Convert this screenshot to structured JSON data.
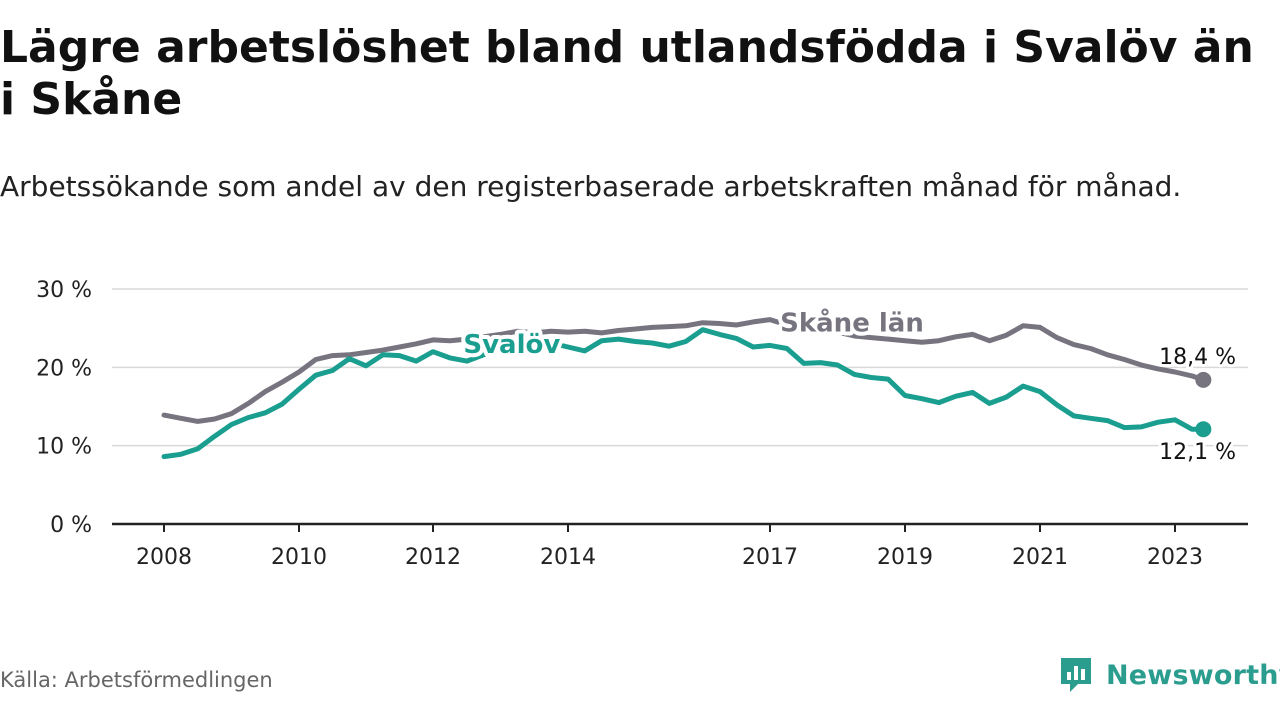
{
  "header": {
    "title": "Lägre arbetslöshet bland utlandsfödda i Svalöv än i Skåne",
    "subtitle": "Arbetssökande som andel av den registerbaserade arbetskraften månad för månad."
  },
  "footer": {
    "source": "Källa: Arbetsförmedlingen",
    "brand": "Newsworthy"
  },
  "colors": {
    "svalov": "#1a9e8f",
    "skane": "#77747f",
    "grid": "#d9d9d9",
    "axis": "#222222",
    "brand": "#2b9d8f"
  },
  "chart_data": {
    "type": "line",
    "title": "Lägre arbetslöshet bland utlandsfödda i Svalöv än i Skåne",
    "xlabel": "",
    "ylabel": "",
    "ylim": [
      0,
      30
    ],
    "xlim": [
      2008.0,
      2024.0
    ],
    "yticks": [
      0,
      10,
      20,
      30
    ],
    "ytick_labels": [
      "0 %",
      "10 %",
      "20 %",
      "30 %"
    ],
    "xticks": [
      2008,
      2010,
      2012,
      2014,
      2017,
      2019,
      2021,
      2023
    ],
    "xtick_labels": [
      "2008",
      "2010",
      "2012",
      "2014",
      "2017",
      "2019",
      "2021",
      "2023"
    ],
    "grid": true,
    "series": [
      {
        "name": "Skåne län",
        "key": "skane",
        "end_label": "18,4 %",
        "points": [
          [
            2008.0,
            13.9
          ],
          [
            2008.25,
            13.5
          ],
          [
            2008.5,
            13.1
          ],
          [
            2008.75,
            13.4
          ],
          [
            2009.0,
            14.1
          ],
          [
            2009.25,
            15.4
          ],
          [
            2009.5,
            16.9
          ],
          [
            2009.75,
            18.1
          ],
          [
            2010.0,
            19.4
          ],
          [
            2010.25,
            21.0
          ],
          [
            2010.5,
            21.5
          ],
          [
            2010.75,
            21.6
          ],
          [
            2011.0,
            21.9
          ],
          [
            2011.25,
            22.2
          ],
          [
            2011.5,
            22.6
          ],
          [
            2011.75,
            23.0
          ],
          [
            2012.0,
            23.5
          ],
          [
            2012.25,
            23.4
          ],
          [
            2012.5,
            23.6
          ],
          [
            2012.75,
            23.9
          ],
          [
            2013.0,
            24.2
          ],
          [
            2013.25,
            24.6
          ],
          [
            2013.5,
            24.4
          ],
          [
            2013.75,
            24.6
          ],
          [
            2014.0,
            24.5
          ],
          [
            2014.25,
            24.6
          ],
          [
            2014.5,
            24.4
          ],
          [
            2014.75,
            24.7
          ],
          [
            2015.0,
            24.9
          ],
          [
            2015.25,
            25.1
          ],
          [
            2015.5,
            25.2
          ],
          [
            2015.75,
            25.3
          ],
          [
            2016.0,
            25.7
          ],
          [
            2016.25,
            25.6
          ],
          [
            2016.5,
            25.4
          ],
          [
            2016.75,
            25.8
          ],
          [
            2017.0,
            26.1
          ],
          [
            2017.25,
            25.4
          ],
          [
            2017.5,
            25.1
          ],
          [
            2017.75,
            24.8
          ],
          [
            2018.0,
            24.5
          ],
          [
            2018.25,
            24.0
          ],
          [
            2018.5,
            23.8
          ],
          [
            2018.75,
            23.6
          ],
          [
            2019.0,
            23.4
          ],
          [
            2019.25,
            23.2
          ],
          [
            2019.5,
            23.4
          ],
          [
            2019.75,
            23.9
          ],
          [
            2020.0,
            24.2
          ],
          [
            2020.25,
            23.4
          ],
          [
            2020.5,
            24.1
          ],
          [
            2020.75,
            25.3
          ],
          [
            2021.0,
            25.1
          ],
          [
            2021.25,
            23.8
          ],
          [
            2021.5,
            22.9
          ],
          [
            2021.75,
            22.4
          ],
          [
            2022.0,
            21.6
          ],
          [
            2022.25,
            21.0
          ],
          [
            2022.5,
            20.3
          ],
          [
            2022.75,
            19.8
          ],
          [
            2023.0,
            19.4
          ],
          [
            2023.25,
            18.9
          ],
          [
            2023.42,
            18.4
          ]
        ]
      },
      {
        "name": "Svalöv",
        "key": "svalov",
        "end_label": "12,1 %",
        "points": [
          [
            2008.0,
            8.6
          ],
          [
            2008.25,
            8.9
          ],
          [
            2008.5,
            9.6
          ],
          [
            2008.75,
            11.2
          ],
          [
            2009.0,
            12.7
          ],
          [
            2009.25,
            13.6
          ],
          [
            2009.5,
            14.2
          ],
          [
            2009.75,
            15.3
          ],
          [
            2010.0,
            17.2
          ],
          [
            2010.25,
            19.0
          ],
          [
            2010.5,
            19.6
          ],
          [
            2010.75,
            21.1
          ],
          [
            2011.0,
            20.2
          ],
          [
            2011.25,
            21.6
          ],
          [
            2011.5,
            21.5
          ],
          [
            2011.75,
            20.8
          ],
          [
            2012.0,
            22.0
          ],
          [
            2012.25,
            21.2
          ],
          [
            2012.5,
            20.8
          ],
          [
            2012.75,
            21.6
          ],
          [
            2013.0,
            22.4
          ],
          [
            2013.25,
            22.0
          ],
          [
            2013.5,
            22.7
          ],
          [
            2013.75,
            23.1
          ],
          [
            2014.0,
            22.6
          ],
          [
            2014.25,
            22.1
          ],
          [
            2014.5,
            23.4
          ],
          [
            2014.75,
            23.6
          ],
          [
            2015.0,
            23.3
          ],
          [
            2015.25,
            23.1
          ],
          [
            2015.5,
            22.7
          ],
          [
            2015.75,
            23.3
          ],
          [
            2016.0,
            24.8
          ],
          [
            2016.25,
            24.2
          ],
          [
            2016.5,
            23.7
          ],
          [
            2016.75,
            22.6
          ],
          [
            2017.0,
            22.8
          ],
          [
            2017.25,
            22.4
          ],
          [
            2017.5,
            20.5
          ],
          [
            2017.75,
            20.6
          ],
          [
            2018.0,
            20.3
          ],
          [
            2018.25,
            19.1
          ],
          [
            2018.5,
            18.7
          ],
          [
            2018.75,
            18.5
          ],
          [
            2019.0,
            16.4
          ],
          [
            2019.25,
            16.0
          ],
          [
            2019.5,
            15.5
          ],
          [
            2019.75,
            16.3
          ],
          [
            2020.0,
            16.8
          ],
          [
            2020.25,
            15.4
          ],
          [
            2020.5,
            16.2
          ],
          [
            2020.75,
            17.6
          ],
          [
            2021.0,
            16.9
          ],
          [
            2021.25,
            15.2
          ],
          [
            2021.5,
            13.8
          ],
          [
            2021.75,
            13.5
          ],
          [
            2022.0,
            13.2
          ],
          [
            2022.25,
            12.3
          ],
          [
            2022.5,
            12.4
          ],
          [
            2022.75,
            13.0
          ],
          [
            2023.0,
            13.3
          ],
          [
            2023.25,
            12.1
          ],
          [
            2023.42,
            12.1
          ]
        ]
      }
    ],
    "annotations": [
      {
        "text": "Skåne län",
        "series": "skane"
      },
      {
        "text": "Svalöv",
        "series": "svalov"
      }
    ]
  }
}
